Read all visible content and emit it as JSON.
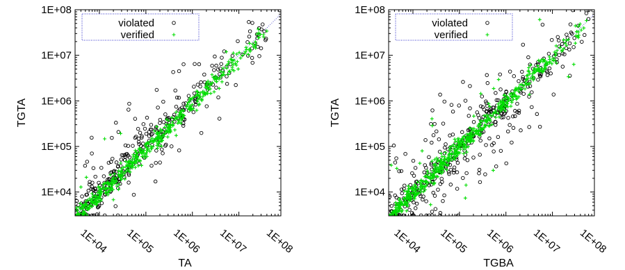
{
  "chart_data": [
    {
      "type": "scatter",
      "xlabel": "TA",
      "ylabel": "TGTA",
      "xscale": "log",
      "yscale": "log",
      "xlim": [
        3000,
        80000000
      ],
      "ylim": [
        3000,
        100000000
      ],
      "xticks": [
        "1E+04",
        "1E+05",
        "1E+06",
        "1E+07",
        "1E+08"
      ],
      "yticks": [
        "1E+04",
        "1E+05",
        "1E+06",
        "1E+07",
        "1E+08"
      ],
      "legend_position": "top-left",
      "grid": false,
      "diagonal": true,
      "series": [
        {
          "name": "violated",
          "marker": "open-circle",
          "color": "#000000",
          "count": 350,
          "spread": 0.2,
          "offset": 0.0,
          "outlier_rate": 0.22
        },
        {
          "name": "verified",
          "marker": "plus",
          "color": "#00dd00",
          "count": 500,
          "spread": 0.1,
          "offset": -0.08,
          "outlier_rate": 0.03
        }
      ]
    },
    {
      "type": "scatter",
      "xlabel": "TGBA",
      "ylabel": "TGTA",
      "xscale": "log",
      "yscale": "log",
      "xlim": [
        3000,
        80000000
      ],
      "ylim": [
        3000,
        100000000
      ],
      "xticks": [
        "1E+04",
        "1E+05",
        "1E+06",
        "1E+07",
        "1E+08"
      ],
      "yticks": [
        "1E+04",
        "1E+05",
        "1E+06",
        "1E+07",
        "1E+08"
      ],
      "legend_position": "top-left",
      "grid": false,
      "diagonal": true,
      "series": [
        {
          "name": "violated",
          "marker": "open-circle",
          "color": "#000000",
          "count": 400,
          "spread": 0.22,
          "offset": -0.05,
          "outlier_rate": 0.3
        },
        {
          "name": "verified",
          "marker": "plus",
          "color": "#00dd00",
          "count": 600,
          "spread": 0.1,
          "offset": -0.03,
          "outlier_rate": 0.04
        }
      ]
    }
  ]
}
